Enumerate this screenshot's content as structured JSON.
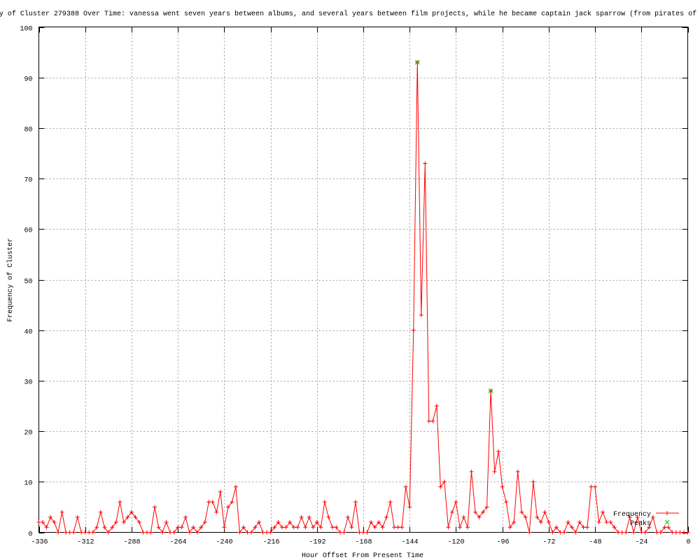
{
  "chart_data": {
    "type": "line",
    "title": "y of Cluster 279388 Over Time: vanessa went seven years between albums, and several years between film projects, while he became captain jack sparrow (from pirates of",
    "xlabel": "Hour Offset From Present Time",
    "ylabel": "Frequency of Cluster",
    "xlim": [
      -336,
      0
    ],
    "ylim": [
      0,
      100
    ],
    "xticks": [
      -336,
      -312,
      -288,
      -264,
      -240,
      -216,
      -192,
      -168,
      -144,
      -120,
      -96,
      -72,
      -48,
      -24,
      0
    ],
    "yticks": [
      0,
      10,
      20,
      30,
      40,
      50,
      60,
      70,
      80,
      90,
      100
    ],
    "grid": true,
    "legend_placement": "bottom-right",
    "x_start": -336,
    "x_step": 2,
    "series": [
      {
        "name": "Frequency",
        "color": "#ff0000",
        "marker": "plus",
        "values": [
          2,
          2,
          1,
          3,
          2,
          0,
          4,
          0,
          0,
          0,
          3,
          0,
          0,
          0,
          0,
          1,
          4,
          1,
          0,
          1,
          2,
          6,
          2,
          3,
          4,
          3,
          2,
          0,
          0,
          0,
          5,
          1,
          0,
          2,
          0,
          0,
          1,
          1,
          3,
          0,
          1,
          0,
          1,
          2,
          6,
          6,
          4,
          8,
          1,
          5,
          6,
          9,
          0,
          1,
          0,
          0,
          1,
          2,
          0,
          0,
          0,
          1,
          2,
          1,
          1,
          2,
          1,
          1,
          3,
          1,
          3,
          1,
          2,
          1,
          6,
          3,
          1,
          1,
          0,
          0,
          3,
          1,
          6,
          0,
          0,
          0,
          2,
          1,
          2,
          1,
          3,
          6,
          1,
          1,
          1,
          9,
          5,
          40,
          93,
          43,
          73,
          22,
          22,
          25,
          9,
          10,
          1,
          4,
          6,
          1,
          3,
          1,
          12,
          4,
          3,
          4,
          5,
          28,
          12,
          16,
          9,
          6,
          1,
          2,
          12,
          4,
          3,
          0,
          10,
          3,
          2,
          4,
          2,
          0,
          1,
          0,
          0,
          2,
          1,
          0,
          2,
          1,
          1,
          9,
          9,
          2,
          4,
          2,
          2,
          1,
          0,
          0,
          0,
          3,
          0,
          3,
          0,
          0,
          1,
          3,
          0,
          0,
          1,
          1,
          0,
          0,
          0,
          0,
          0
        ]
      },
      {
        "name": "Peaks",
        "color": "#00c000",
        "marker": "cross",
        "points": [
          {
            "x": -140,
            "y": 93
          },
          {
            "x": -102,
            "y": 28
          }
        ]
      }
    ]
  }
}
